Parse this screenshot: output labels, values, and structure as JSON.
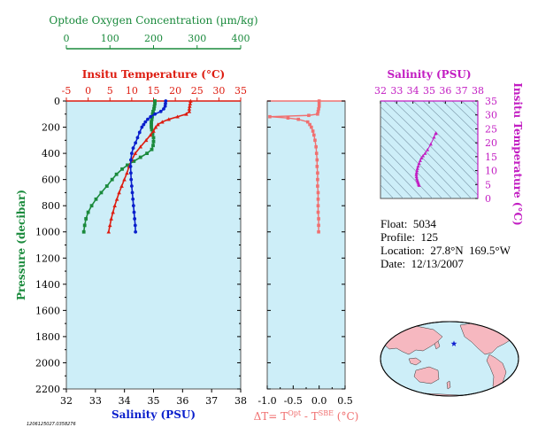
{
  "colors": {
    "oxygen": "#1a8a3c",
    "temperature": "#dd1c10",
    "salinity": "#0a1fcc",
    "delta": "#f07070",
    "ts": "#c21cc2",
    "panel_bg": "#cdeef8",
    "land": "#f6b8c0",
    "ocean": "#cdeef8"
  },
  "chart_data": [
    {
      "type": "line",
      "panel": "profiles",
      "pressure_axis": {
        "label": "Pressure (decibar)",
        "range": [
          0,
          2200
        ],
        "ticks": [
          "0",
          "200",
          "400",
          "600",
          "800",
          "1000",
          "1200",
          "1400",
          "1600",
          "1800",
          "2000",
          "2200"
        ]
      },
      "oxygen_axis": {
        "label": "Optode Oxygen Concentration (µm/kg)",
        "range": [
          0,
          400
        ],
        "ticks": [
          "0",
          "100",
          "200",
          "300",
          "400"
        ]
      },
      "temperature_axis": {
        "label": "Insitu Temperature (°C)",
        "range": [
          -5,
          35
        ],
        "ticks": [
          "-5",
          "0",
          "5",
          "10",
          "15",
          "20",
          "25",
          "30",
          "35"
        ]
      },
      "salinity_axis": {
        "label": "Salinity (PSU)",
        "range": [
          32,
          38
        ],
        "ticks": [
          "32",
          "33",
          "34",
          "35",
          "36",
          "37",
          "38"
        ]
      },
      "series": [
        {
          "key": "oxygen",
          "marker": "square",
          "pressure": [
            0,
            20,
            40,
            60,
            80,
            100,
            120,
            140,
            160,
            180,
            200,
            220,
            250,
            280,
            310,
            340,
            370,
            400,
            430,
            460,
            490,
            520,
            560,
            600,
            650,
            700,
            750,
            800,
            850,
            900,
            950,
            1000
          ],
          "values": [
            203,
            203,
            202,
            201,
            199,
            198,
            197,
            196,
            195,
            195,
            195,
            196,
            198,
            200,
            200,
            199,
            196,
            185,
            170,
            155,
            140,
            128,
            115,
            105,
            93,
            80,
            68,
            58,
            50,
            45,
            42,
            40
          ]
        },
        {
          "key": "temperature",
          "marker": "triangle",
          "pressure": [
            0,
            20,
            40,
            60,
            80,
            100,
            120,
            140,
            160,
            180,
            200,
            230,
            260,
            300,
            350,
            400,
            450,
            500,
            550,
            600,
            650,
            700,
            750,
            800,
            850,
            900,
            950,
            1000
          ],
          "values": [
            23.5,
            23.4,
            23.3,
            23.2,
            23.2,
            22.5,
            20.5,
            18.5,
            17.0,
            16.0,
            15.5,
            15.0,
            14.3,
            13.3,
            12.0,
            10.8,
            10.0,
            9.4,
            8.9,
            8.3,
            7.7,
            7.1,
            6.6,
            6.1,
            5.7,
            5.3,
            5.0,
            4.7
          ]
        },
        {
          "key": "salinity",
          "marker": "circle",
          "pressure": [
            0,
            20,
            40,
            60,
            80,
            100,
            120,
            140,
            160,
            180,
            200,
            240,
            280,
            320,
            360,
            400,
            450,
            500,
            550,
            600,
            650,
            700,
            750,
            800,
            850,
            900,
            950,
            1000
          ],
          "values": [
            35.42,
            35.41,
            35.4,
            35.35,
            35.25,
            35.05,
            34.9,
            34.8,
            34.72,
            34.66,
            34.6,
            34.52,
            34.45,
            34.38,
            34.3,
            34.25,
            34.22,
            34.21,
            34.22,
            34.23,
            34.25,
            34.27,
            34.29,
            34.31,
            34.33,
            34.35,
            34.37,
            34.38
          ]
        }
      ]
    },
    {
      "type": "line",
      "panel": "delta",
      "x_axis": {
        "label_main": "ΔT= T",
        "label_sup1": "Opt",
        "label_mid": " - T",
        "label_sup2": "SBE",
        "label_end": " (°C)",
        "range": [
          -1.0,
          0.5
        ],
        "ticks": [
          "-1.0",
          "-0.5",
          "0.0",
          "0.5"
        ]
      },
      "marker": "square",
      "pressure": [
        0,
        20,
        40,
        60,
        80,
        100,
        110,
        120,
        130,
        140,
        160,
        180,
        200,
        230,
        260,
        300,
        350,
        400,
        450,
        500,
        550,
        600,
        650,
        700,
        750,
        800,
        850,
        900,
        950,
        1000
      ],
      "values": [
        0.0,
        0.0,
        0.0,
        -0.01,
        -0.02,
        -0.03,
        -0.2,
        -0.95,
        -0.6,
        -0.4,
        -0.22,
        -0.18,
        -0.15,
        -0.12,
        -0.1,
        -0.08,
        -0.06,
        -0.05,
        -0.04,
        -0.04,
        -0.03,
        -0.03,
        -0.03,
        -0.02,
        -0.02,
        -0.02,
        -0.02,
        -0.01,
        -0.01,
        -0.01
      ]
    },
    {
      "type": "scatter",
      "panel": "ts",
      "x_axis": {
        "label": "Salinity (PSU)",
        "range": [
          32,
          38
        ],
        "ticks": [
          "32",
          "33",
          "34",
          "35",
          "36",
          "37",
          "38"
        ]
      },
      "y_axis": {
        "label": "Insitu Temperature (°C)",
        "range": [
          0,
          35
        ],
        "ticks": [
          "0",
          "5",
          "10",
          "15",
          "20",
          "25",
          "30",
          "35"
        ]
      },
      "marker": "triangle",
      "salinity": [
        35.42,
        35.4,
        35.3,
        35.1,
        34.9,
        34.75,
        34.62,
        34.52,
        34.45,
        34.38,
        34.32,
        34.28,
        34.25,
        34.22,
        34.21,
        34.22,
        34.24,
        34.27,
        34.3,
        34.33,
        34.36,
        34.38
      ],
      "temperature": [
        23.5,
        23.3,
        22.0,
        19.5,
        17.5,
        16.2,
        15.3,
        14.5,
        13.6,
        12.6,
        11.6,
        10.8,
        10.0,
        9.2,
        8.5,
        7.8,
        7.1,
        6.5,
        6.0,
        5.5,
        5.0,
        4.7
      ]
    }
  ],
  "float_info": {
    "float": "Float:  5034",
    "profile": "Profile:  125",
    "location": "Location:  27.8°N  169.5°W",
    "date": "Date:  12/13/2007"
  },
  "footer": "1206125027.0358276"
}
